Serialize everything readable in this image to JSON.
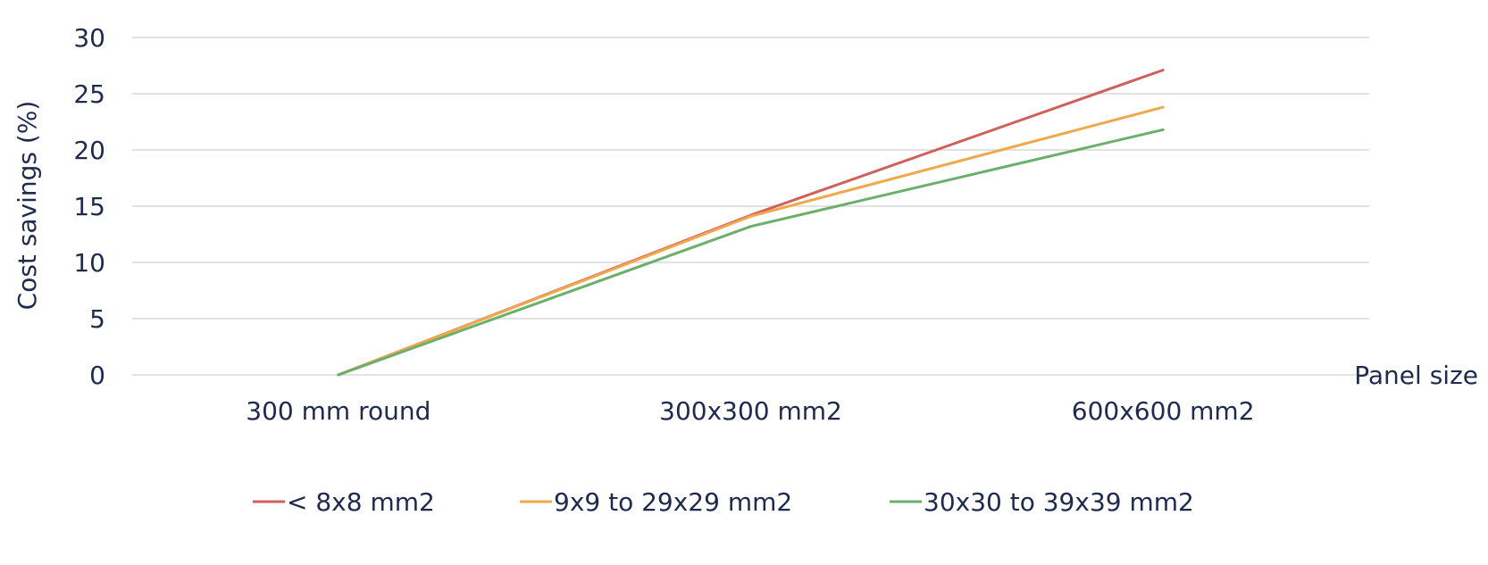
{
  "chart_data": {
    "type": "line",
    "title": "",
    "xlabel": "Panel size",
    "ylabel": "Cost savings (%)",
    "categories": [
      "300 mm round",
      "300x300 mm2",
      "600x600 mm2"
    ],
    "ylim": [
      0,
      30
    ],
    "yticks": [
      "0",
      "5",
      "10",
      "15",
      "20",
      "25",
      "30"
    ],
    "grid": true,
    "legend_position": "bottom",
    "series": [
      {
        "name": "< 8x8 mm2",
        "values": [
          0,
          14.2,
          27.1
        ],
        "color": "#d0605a"
      },
      {
        "name": "9x9 to 29x29 mm2",
        "values": [
          0,
          14.1,
          23.8
        ],
        "color": "#f0a84a"
      },
      {
        "name": "30x30 to 39x39 mm2",
        "values": [
          0,
          13.2,
          21.8
        ],
        "color": "#6ab06a"
      }
    ]
  }
}
